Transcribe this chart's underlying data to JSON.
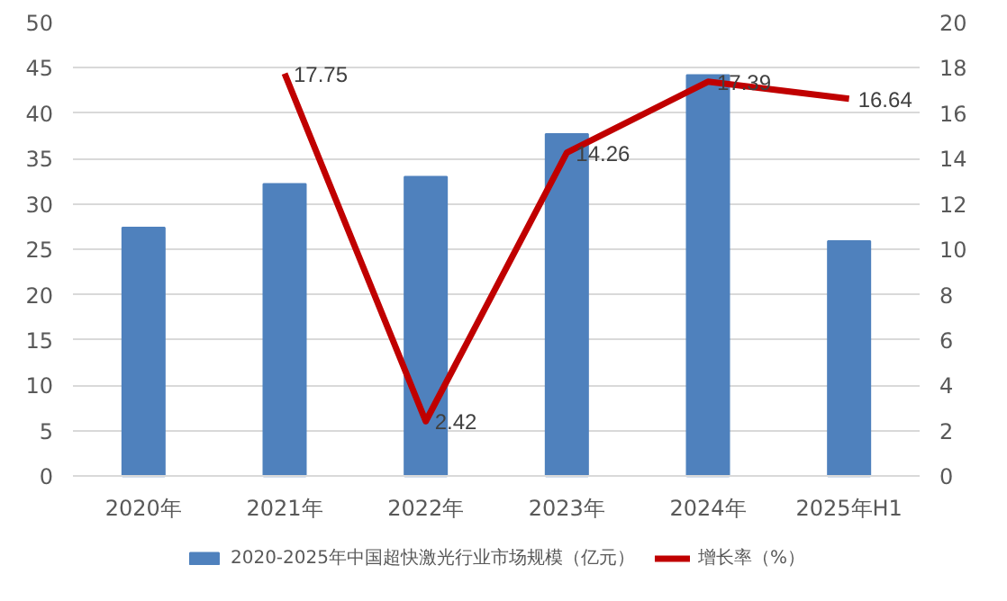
{
  "chart_data": {
    "type": "bar",
    "categories": [
      "2020年",
      "2021年",
      "2022年",
      "2023年",
      "2024年",
      "2025年H1"
    ],
    "series": [
      {
        "name": "2020-2025年中国超快激光行业市场规模（亿元）",
        "color": "#4f81bd",
        "values": [
          27.4,
          32.2,
          33.0,
          37.7,
          44.2,
          25.9
        ]
      },
      {
        "name": "增长率（%）",
        "type": "line",
        "axis": "y2",
        "color": "#c00000",
        "values": [
          null,
          17.75,
          2.42,
          14.26,
          17.39,
          16.64
        ],
        "value_labels": [
          null,
          "17.75",
          "2.42",
          "14.26",
          "17.39",
          "16.64"
        ]
      }
    ],
    "ylim": [
      0,
      50
    ],
    "yticks": [
      0,
      5,
      10,
      15,
      20,
      25,
      30,
      35,
      40,
      45,
      50
    ],
    "y2lim": [
      0,
      20
    ],
    "y2ticks": [
      0,
      2,
      4,
      6,
      8,
      10,
      12,
      14,
      16,
      18,
      20
    ],
    "grid": "y",
    "legend": "bottom",
    "marker": "none",
    "line_style": "solid"
  }
}
